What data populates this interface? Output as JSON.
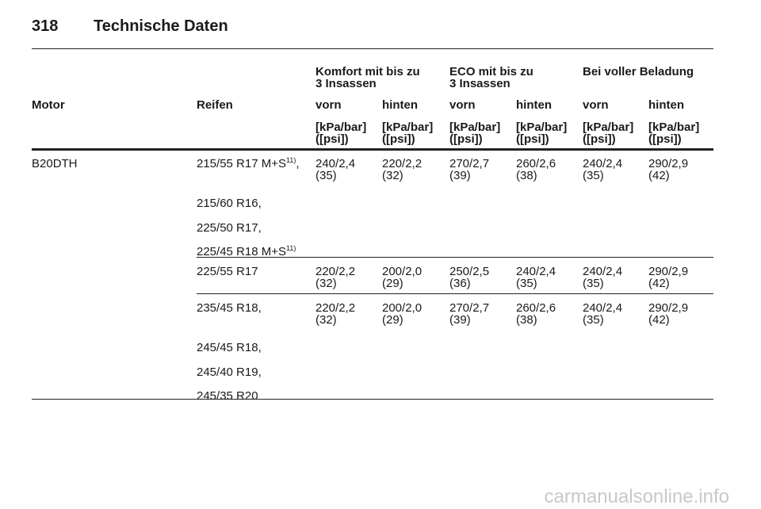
{
  "header": {
    "page": "318",
    "title": "Technische Daten"
  },
  "table": {
    "groups": [
      [
        "Komfort mit bis zu",
        "3 Insassen"
      ],
      [
        "ECO mit bis zu",
        "3 Insassen"
      ],
      [
        "Bei voller Beladung"
      ]
    ],
    "columns": [
      "Motor",
      "Reifen",
      "vorn",
      "hinten",
      "vorn",
      "hinten",
      "vorn",
      "hinten"
    ],
    "units": [
      "[kPa/bar]",
      "([psi])"
    ],
    "rows": [
      {
        "motor": "B20DTH",
        "tires": [
          {
            "text": "215/55 R17 M+S",
            "note": "11)",
            "tail": ","
          },
          {
            "text": "215/60 R16,"
          },
          {
            "text": "225/50 R17,"
          },
          {
            "text": "225/45 R18 M+S",
            "note": "11)"
          }
        ],
        "values": [
          [
            "240/2,4",
            "(35)"
          ],
          [
            "220/2,2",
            "(32)"
          ],
          [
            "270/2,7",
            "(39)"
          ],
          [
            "260/2,6",
            "(38)"
          ],
          [
            "240/2,4",
            "(35)"
          ],
          [
            "290/2,9",
            "(42)"
          ]
        ]
      },
      {
        "tires": [
          {
            "text": "225/55 R17"
          }
        ],
        "values": [
          [
            "220/2,2",
            "(32)"
          ],
          [
            "200/2,0",
            "(29)"
          ],
          [
            "250/2,5",
            "(36)"
          ],
          [
            "240/2,4",
            "(35)"
          ],
          [
            "240/2,4",
            "(35)"
          ],
          [
            "290/2,9",
            "(42)"
          ]
        ]
      },
      {
        "tires": [
          {
            "text": "235/45 R18,"
          },
          {
            "text": "245/45 R18,"
          },
          {
            "text": "245/40 R19,"
          },
          {
            "text": "245/35 R20"
          }
        ],
        "values": [
          [
            "220/2,2",
            "(32)"
          ],
          [
            "200/2,0",
            "(29)"
          ],
          [
            "270/2,7",
            "(39)"
          ],
          [
            "260/2,6",
            "(38)"
          ],
          [
            "240/2,4",
            "(35)"
          ],
          [
            "290/2,9",
            "(42)"
          ]
        ]
      }
    ]
  },
  "watermark": "carmanualsonline.info"
}
